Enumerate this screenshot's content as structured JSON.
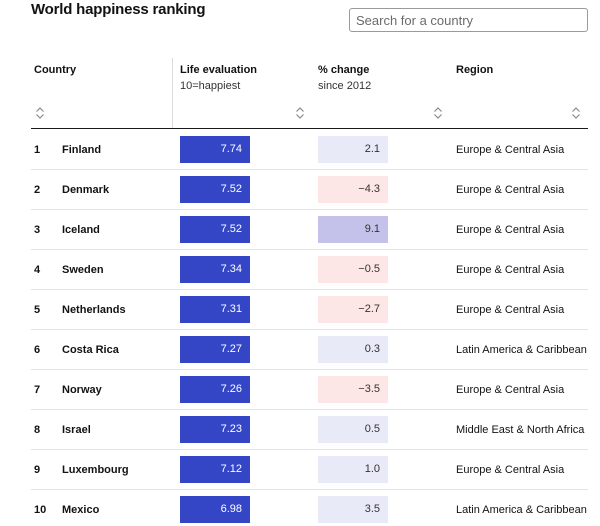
{
  "title": "World happiness ranking",
  "search": {
    "placeholder": "Search for a country"
  },
  "columns": {
    "country": "Country",
    "life": {
      "label": "Life evaluation",
      "sub": "10=happiest"
    },
    "change": {
      "label": "% change",
      "sub": "since 2012"
    },
    "region": "Region"
  },
  "colors": {
    "life_bar": "#3446c6",
    "change_small_positive": "#e8eaf8",
    "change_negative": "#fde6e6",
    "change_large_positive": "#c4c2ea"
  },
  "rows": [
    {
      "rank": "1",
      "country": "Finland",
      "life": "7.74",
      "change": "2.1",
      "region": "Europe & Central Asia"
    },
    {
      "rank": "2",
      "country": "Denmark",
      "life": "7.52",
      "change": "−4.3",
      "region": "Europe & Central Asia"
    },
    {
      "rank": "3",
      "country": "Iceland",
      "life": "7.52",
      "change": "9.1",
      "region": "Europe & Central Asia"
    },
    {
      "rank": "4",
      "country": "Sweden",
      "life": "7.34",
      "change": "−0.5",
      "region": "Europe & Central Asia"
    },
    {
      "rank": "5",
      "country": "Netherlands",
      "life": "7.31",
      "change": "−2.7",
      "region": "Europe & Central Asia"
    },
    {
      "rank": "6",
      "country": "Costa Rica",
      "life": "7.27",
      "change": "0.3",
      "region": "Latin America & Caribbean"
    },
    {
      "rank": "7",
      "country": "Norway",
      "life": "7.26",
      "change": "−3.5",
      "region": "Europe & Central Asia"
    },
    {
      "rank": "8",
      "country": "Israel",
      "life": "7.23",
      "change": "0.5",
      "region": "Middle East & North Africa"
    },
    {
      "rank": "9",
      "country": "Luxembourg",
      "life": "7.12",
      "change": "1.0",
      "region": "Europe & Central Asia"
    },
    {
      "rank": "10",
      "country": "Mexico",
      "life": "6.98",
      "change": "3.5",
      "region": "Latin America & Caribbean"
    }
  ]
}
